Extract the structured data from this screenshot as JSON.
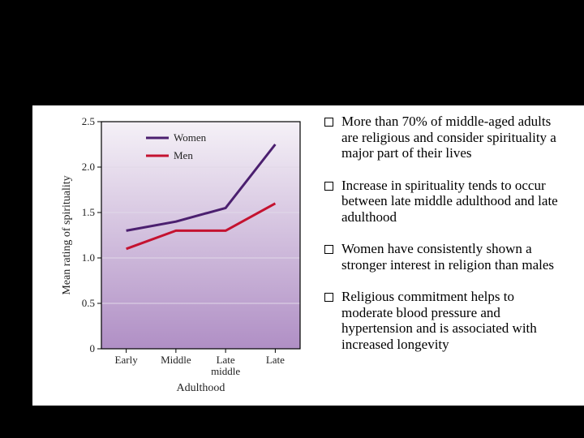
{
  "chart": {
    "type": "line",
    "y_axis": {
      "title": "Mean rating of spirituality",
      "ticks": [
        0,
        0.5,
        1.0,
        1.5,
        2.0,
        2.5
      ],
      "min": 0,
      "max": 2.5
    },
    "x_axis": {
      "title": "Adulthood",
      "categories": [
        "Early",
        "Middle",
        "Late\nmiddle",
        "Late"
      ]
    },
    "series": [
      {
        "name": "Women",
        "color": "#4b1f6f",
        "line_width": 3,
        "values": [
          1.3,
          1.4,
          1.55,
          2.25
        ]
      },
      {
        "name": "Men",
        "color": "#c41230",
        "line_width": 3,
        "values": [
          1.1,
          1.3,
          1.3,
          1.6
        ]
      }
    ],
    "background_gradient": {
      "top": "#f5f1f7",
      "bottom": "#b08fc5"
    },
    "grid_color": "#e0d8e8",
    "border_color": "#000000"
  },
  "bullets": [
    "More than 70% of middle-aged adults are religious and consider spirituality a major part of their lives",
    "Increase in spirituality tends to occur between late middle adulthood and late adulthood",
    "Women have consistently shown a stronger interest in religion than males",
    "Religious commitment helps to moderate blood pressure and hypertension and is associated with increased longevity"
  ]
}
